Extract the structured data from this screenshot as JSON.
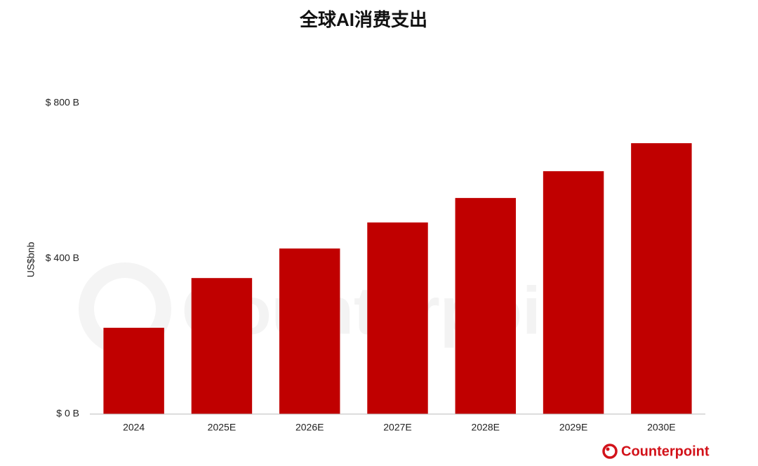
{
  "chart_data": {
    "type": "bar",
    "title": "全球AI消费支出",
    "y_label": "US$bnb",
    "source": "Counterpoint",
    "categories": [
      "2024",
      "2025E",
      "2026E",
      "2027E",
      "2028E",
      "2029E",
      "2030E"
    ],
    "values": [
      222,
      350,
      426,
      493,
      556,
      625,
      697
    ],
    "color": "#c00000",
    "ylim": [
      0,
      800
    ],
    "yticks": [
      {
        "value": 0,
        "label": "$ 0 B"
      },
      {
        "value": 400,
        "label": "$ 400 B"
      },
      {
        "value": 800,
        "label": "$ 800 B"
      }
    ],
    "grid": false
  }
}
